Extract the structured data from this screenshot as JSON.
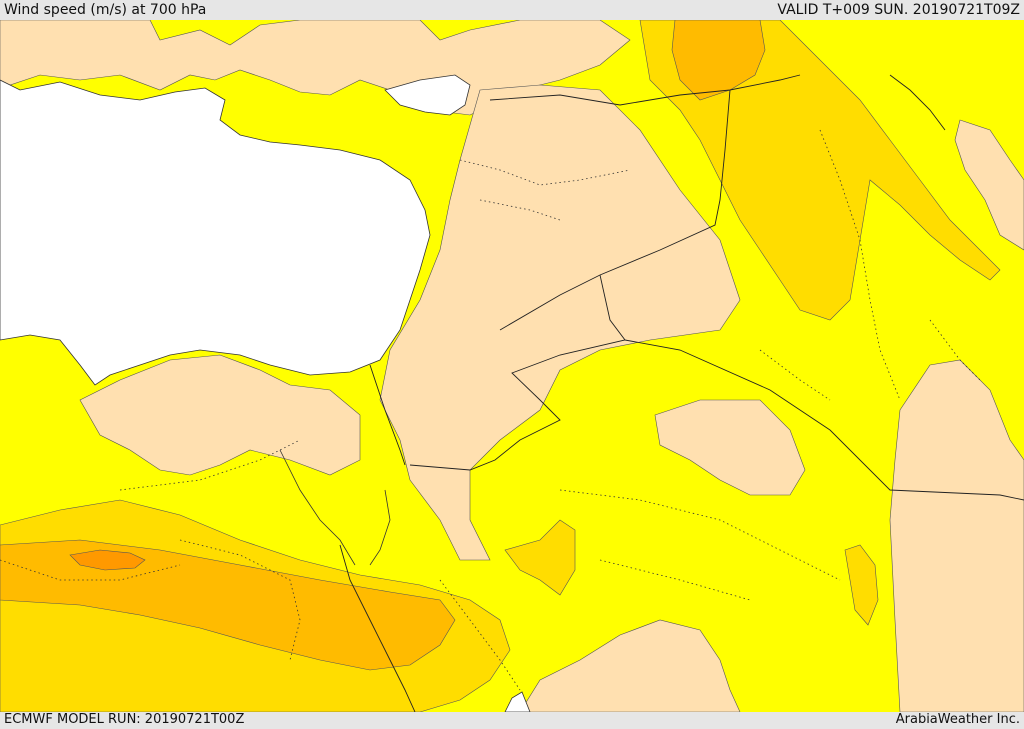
{
  "header": {
    "title": "Wind speed (m/s) at 700 hPa",
    "valid": "VALID T+009 SUN. 20190721T09Z"
  },
  "footer": {
    "model_run": "ECMWF MODEL RUN: 20190721T00Z",
    "credit": "ArabiaWeather Inc."
  },
  "colors": {
    "sea": "#ffffff",
    "calm_land": "#ffe0b0",
    "band_yellow": "#ffff00",
    "band_gold": "#ffdd00",
    "band_amber": "#ffbb00",
    "band_orange": "#ff9900",
    "border": "#222222"
  }
}
